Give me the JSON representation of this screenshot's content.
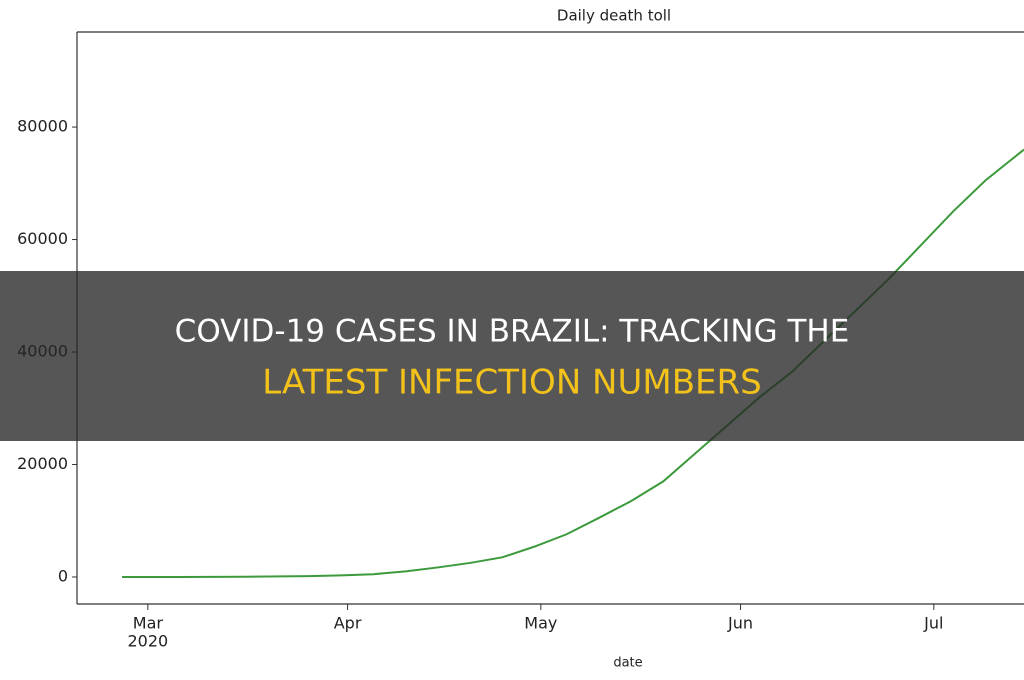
{
  "chart_data": {
    "type": "line",
    "title": "Daily death toll",
    "xlabel": "date",
    "x": [
      -4,
      5,
      15,
      25,
      30,
      35,
      40,
      45,
      50,
      55,
      60,
      65,
      70,
      75,
      80,
      85,
      90,
      95,
      100,
      105,
      110,
      115,
      120,
      125,
      130,
      136
    ],
    "series": [
      {
        "color": "#3c9a3c",
        "values": [
          0,
          0,
          50,
          150,
          300,
          500,
          1000,
          1700,
          2500,
          3500,
          5400,
          7600,
          10500,
          13500,
          17000,
          22000,
          27000,
          32000,
          36500,
          42000,
          47500,
          53000,
          59000,
          65000,
          70500,
          76000
        ]
      }
    ],
    "xlim": [
      -11,
      136
    ],
    "ylim": [
      -4800,
      96900
    ],
    "xticks": [
      {
        "value": 0,
        "label": "Mar"
      },
      {
        "value": 31,
        "label": "Apr"
      },
      {
        "value": 61,
        "label": "May"
      },
      {
        "value": 92,
        "label": "Jun"
      },
      {
        "value": 122,
        "label": "Jul"
      }
    ],
    "xtick_year": "2020",
    "yticks": [
      0,
      20000,
      40000,
      60000,
      80000
    ]
  },
  "banner": {
    "line1": "COVID-19 CASES IN BRAZIL: TRACKING THE",
    "line2": "LATEST INFECTION NUMBERS"
  }
}
